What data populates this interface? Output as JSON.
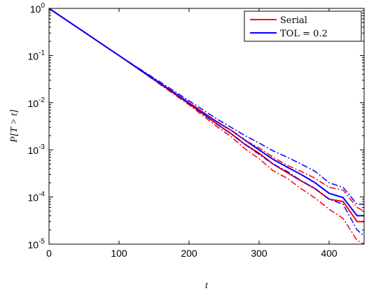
{
  "chart_data": {
    "type": "line",
    "xlabel": "t",
    "ylabel": "P[T > t]",
    "xlim": [
      0,
      450
    ],
    "ylim": [
      1e-05,
      1
    ],
    "yscale": "log",
    "x_ticks": [
      0,
      100,
      200,
      300,
      400
    ],
    "y_ticks": [
      {
        "value": 1,
        "mantissa": "10",
        "exponent": "0"
      },
      {
        "value": 0.1,
        "mantissa": "10",
        "exponent": "-1"
      },
      {
        "value": 0.01,
        "mantissa": "10",
        "exponent": "-2"
      },
      {
        "value": 0.001,
        "mantissa": "10",
        "exponent": "-3"
      },
      {
        "value": 0.0001,
        "mantissa": "10",
        "exponent": "-4"
      },
      {
        "value": 1e-05,
        "mantissa": "10",
        "exponent": "-5"
      }
    ],
    "grid": false,
    "legend_position": "top-right",
    "series": [
      {
        "name": "Serial",
        "color": "#ff0000",
        "style": "solid",
        "x": [
          0,
          100,
          200,
          240,
          260,
          280,
          300,
          320,
          340,
          360,
          380,
          400,
          420,
          440,
          450
        ],
        "y": [
          1,
          0.1,
          0.0095,
          0.0035,
          0.0022,
          0.0013,
          0.00085,
          0.0005,
          0.00033,
          0.00022,
          0.00015,
          9e-05,
          8e-05,
          3e-05,
          3e-05
        ]
      },
      {
        "name": "TOL = 0.2",
        "color": "#0000ff",
        "style": "solid",
        "x": [
          0,
          100,
          200,
          240,
          260,
          280,
          300,
          320,
          340,
          360,
          380,
          400,
          420,
          440,
          450
        ],
        "y": [
          1,
          0.1,
          0.01,
          0.0039,
          0.0026,
          0.0016,
          0.001,
          0.00063,
          0.00043,
          0.0003,
          0.0002,
          0.00012,
          9.7e-05,
          4e-05,
          4e-05
        ]
      },
      {
        "name": "",
        "color": "#ff0000",
        "style": "dashdot",
        "x": [
          0,
          100,
          200,
          240,
          260,
          280,
          300,
          320,
          340,
          360,
          380,
          400,
          420,
          440,
          450
        ],
        "y": [
          1,
          0.1,
          0.009,
          0.0031,
          0.0019,
          0.00105,
          0.00065,
          0.00036,
          0.00025,
          0.00015,
          9.5e-05,
          5.5e-05,
          3.5e-05,
          1.2e-05,
          1e-05
        ]
      },
      {
        "name": "",
        "color": "#ff0000",
        "style": "dashdot",
        "x": [
          0,
          100,
          200,
          240,
          260,
          280,
          300,
          320,
          340,
          360,
          380,
          400,
          420,
          440,
          450
        ],
        "y": [
          1,
          0.1,
          0.01,
          0.004,
          0.0026,
          0.0016,
          0.0011,
          0.0007,
          0.00047,
          0.00035,
          0.00025,
          0.00016,
          0.00014,
          6e-05,
          5e-05
        ]
      },
      {
        "name": "",
        "color": "#0000ff",
        "style": "dashdot",
        "x": [
          0,
          100,
          200,
          240,
          260,
          280,
          300,
          320,
          340,
          360,
          380,
          400,
          420,
          440,
          450
        ],
        "y": [
          1,
          0.1,
          0.0095,
          0.0035,
          0.0022,
          0.0013,
          0.0008,
          0.0005,
          0.00035,
          0.00022,
          0.00015,
          9e-05,
          7e-05,
          2e-05,
          1.5e-05
        ]
      },
      {
        "name": "",
        "color": "#0000ff",
        "style": "dashdot",
        "x": [
          0,
          100,
          200,
          240,
          260,
          280,
          300,
          320,
          340,
          360,
          380,
          400,
          420,
          440,
          450
        ],
        "y": [
          1,
          0.1,
          0.011,
          0.0045,
          0.003,
          0.002,
          0.0014,
          0.00095,
          0.0007,
          0.0005,
          0.00035,
          0.0002,
          0.00016,
          7e-05,
          7e-05
        ]
      }
    ]
  }
}
